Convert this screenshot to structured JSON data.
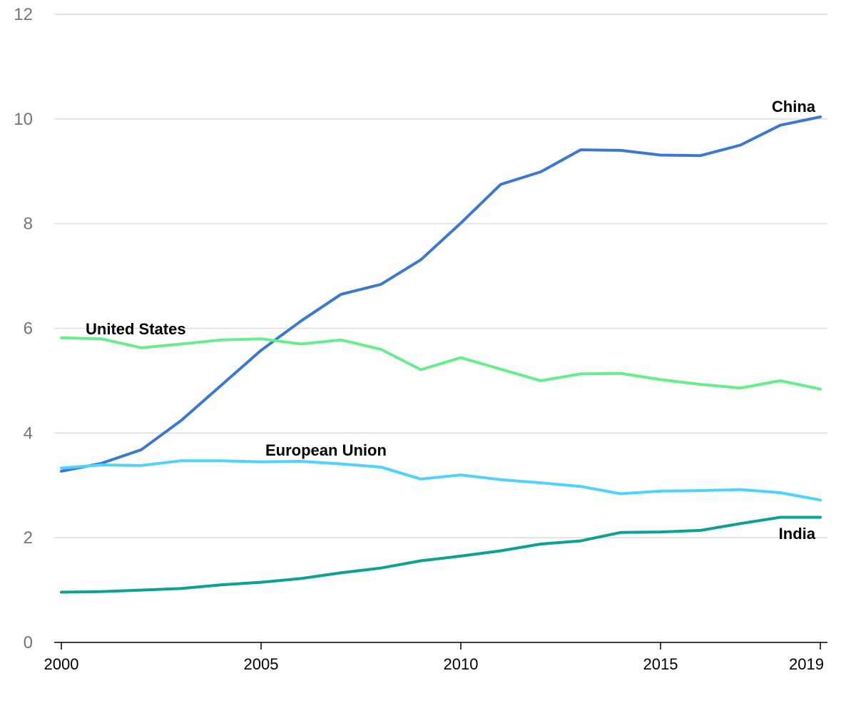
{
  "chart_data": {
    "type": "line",
    "title": "",
    "xlabel": "",
    "ylabel": "",
    "xlim": [
      2000,
      2019
    ],
    "ylim": [
      0,
      12
    ],
    "yticks": [
      "0",
      "2",
      "4",
      "6",
      "8",
      "10",
      "12"
    ],
    "xticks": [
      "2000",
      "2005",
      "2010",
      "2015",
      "2019"
    ],
    "grid": true,
    "legend": "none",
    "x": [
      2000,
      2001,
      2002,
      2003,
      2004,
      2005,
      2006,
      2007,
      2008,
      2009,
      2010,
      2011,
      2012,
      2013,
      2014,
      2015,
      2016,
      2017,
      2018,
      2019
    ],
    "series": [
      {
        "name": "China",
        "color": "#3b78d0",
        "values": [
          3.27,
          3.42,
          3.68,
          4.24,
          4.91,
          5.58,
          6.14,
          6.65,
          6.84,
          7.31,
          8.01,
          8.75,
          8.99,
          9.41,
          9.4,
          9.31,
          9.3,
          9.5,
          9.88,
          10.04
        ]
      },
      {
        "name": "United States",
        "color": "#66ee8d",
        "values": [
          5.82,
          5.8,
          5.63,
          5.7,
          5.78,
          5.8,
          5.7,
          5.78,
          5.6,
          5.21,
          5.44,
          5.22,
          5.0,
          5.13,
          5.14,
          5.02,
          4.93,
          4.86,
          5.0,
          4.84
        ]
      },
      {
        "name": "European Union",
        "color": "#4fd2ff",
        "values": [
          3.33,
          3.39,
          3.38,
          3.47,
          3.47,
          3.45,
          3.46,
          3.41,
          3.35,
          3.12,
          3.2,
          3.11,
          3.05,
          2.98,
          2.84,
          2.89,
          2.9,
          2.92,
          2.86,
          2.72
        ]
      },
      {
        "name": "India",
        "color": "#0aa293",
        "values": [
          0.96,
          0.97,
          1.0,
          1.03,
          1.1,
          1.15,
          1.22,
          1.33,
          1.42,
          1.56,
          1.65,
          1.75,
          1.88,
          1.94,
          2.1,
          2.11,
          2.14,
          2.27,
          2.39,
          2.39
        ]
      }
    ]
  }
}
